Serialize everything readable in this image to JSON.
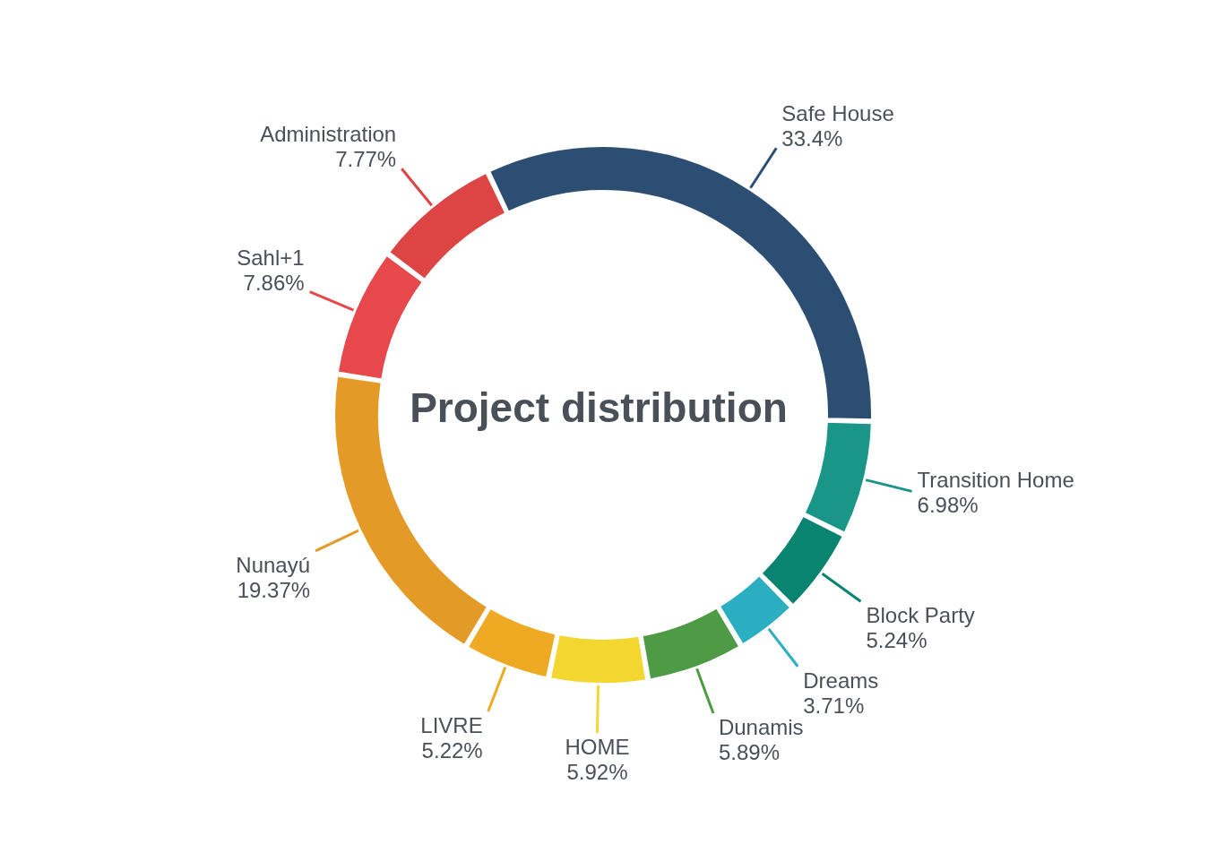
{
  "chart_data": {
    "type": "donut",
    "title": "Project distribution",
    "categories": [
      "Safe House",
      "Transition Home",
      "Block Party",
      "Dreams",
      "Dunamis",
      "HOME",
      "LIVRE",
      "Nunayú",
      "Sahl+1",
      "Administration"
    ],
    "values": [
      33.4,
      6.98,
      5.24,
      3.71,
      5.89,
      5.92,
      5.22,
      19.37,
      7.86,
      7.77
    ],
    "value_labels": [
      "33.4%",
      "6.98%",
      "5.24%",
      "3.71%",
      "5.89%",
      "5.92%",
      "5.22%",
      "19.37%",
      "7.86%",
      "7.77%"
    ],
    "colors": [
      "#2d4e73",
      "#1a9688",
      "#088470",
      "#2baec0",
      "#4e9a45",
      "#f4d631",
      "#eeaa22",
      "#e49a26",
      "#e6484b",
      "#dd4444"
    ],
    "legend": false
  }
}
